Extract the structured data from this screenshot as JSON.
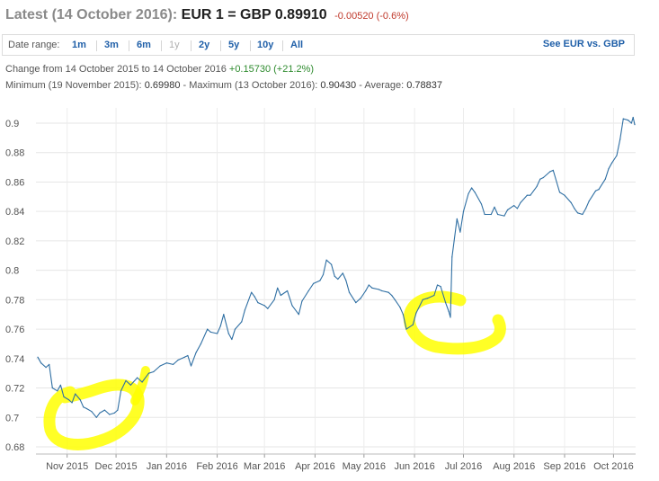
{
  "header": {
    "title_muted": "Latest (14 October 2016):",
    "title_main": "EUR 1 = GBP 0.89910",
    "change": "-0.00520 (-0.6%)"
  },
  "range_bar": {
    "label": "Date range:",
    "buttons": [
      "1m",
      "3m",
      "6m",
      "1y",
      "2y",
      "5y",
      "10y",
      "All"
    ],
    "disabled": "1y",
    "see_link": "See EUR vs. GBP"
  },
  "stats": {
    "change_text": "Change from 14 October 2015 to 14 October 2016",
    "change_value": "+0.15730 (+21.2%)",
    "min_label": "Minimum (19 November 2015):",
    "min_value": "0.69980",
    "max_label": "Maximum (13 October 2016):",
    "max_value": "0.90430",
    "avg_label": "Average:",
    "avg_value": "0.78837"
  },
  "colors": {
    "line": "#2f6fa3",
    "highlight": "#ffff00",
    "link": "#1f5fa8"
  },
  "chart_data": {
    "type": "line",
    "title": "",
    "xlabel": "",
    "ylabel": "",
    "ylim": [
      0.68,
      0.9
    ],
    "yticks": [
      0.68,
      0.7,
      0.72,
      0.74,
      0.76,
      0.78,
      0.8,
      0.82,
      0.84,
      0.86,
      0.88,
      0.9
    ],
    "xlim": [
      "2015-10-14",
      "2016-10-14"
    ],
    "xticks": [
      {
        "date": "2015-11-01",
        "label": "Nov 2015"
      },
      {
        "date": "2015-12-01",
        "label": "Dec 2015"
      },
      {
        "date": "2016-01-01",
        "label": "Jan 2016"
      },
      {
        "date": "2016-02-01",
        "label": "Feb 2016"
      },
      {
        "date": "2016-03-01",
        "label": "Mar 2016"
      },
      {
        "date": "2016-04-01",
        "label": "Apr 2016"
      },
      {
        "date": "2016-05-01",
        "label": "May 2016"
      },
      {
        "date": "2016-06-01",
        "label": "Jun 2016"
      },
      {
        "date": "2016-07-01",
        "label": "Jul 2016"
      },
      {
        "date": "2016-08-01",
        "label": "Aug 2016"
      },
      {
        "date": "2016-09-01",
        "label": "Sep 2016"
      },
      {
        "date": "2016-10-01",
        "label": "Oct 2016"
      }
    ],
    "grid": true,
    "series": [
      {
        "points": [
          [
            "2015-10-14",
            0.741
          ],
          [
            "2015-10-16",
            0.737
          ],
          [
            "2015-10-19",
            0.734
          ],
          [
            "2015-10-21",
            0.736
          ],
          [
            "2015-10-23",
            0.72
          ],
          [
            "2015-10-26",
            0.718
          ],
          [
            "2015-10-28",
            0.722
          ],
          [
            "2015-10-30",
            0.714
          ],
          [
            "2015-11-02",
            0.712
          ],
          [
            "2015-11-04",
            0.71
          ],
          [
            "2015-11-06",
            0.716
          ],
          [
            "2015-11-09",
            0.712
          ],
          [
            "2015-11-11",
            0.707
          ],
          [
            "2015-11-13",
            0.706
          ],
          [
            "2015-11-16",
            0.704
          ],
          [
            "2015-11-19",
            0.7
          ],
          [
            "2015-11-21",
            0.703
          ],
          [
            "2015-11-24",
            0.705
          ],
          [
            "2015-11-27",
            0.702
          ],
          [
            "2015-11-30",
            0.703
          ],
          [
            "2015-12-02",
            0.705
          ],
          [
            "2015-12-04",
            0.718
          ],
          [
            "2015-12-07",
            0.725
          ],
          [
            "2015-12-10",
            0.722
          ],
          [
            "2015-12-14",
            0.727
          ],
          [
            "2015-12-17",
            0.724
          ],
          [
            "2015-12-21",
            0.73
          ],
          [
            "2015-12-24",
            0.731
          ],
          [
            "2015-12-28",
            0.735
          ],
          [
            "2016-01-01",
            0.737
          ],
          [
            "2016-01-05",
            0.736
          ],
          [
            "2016-01-08",
            0.739
          ],
          [
            "2016-01-12",
            0.741
          ],
          [
            "2016-01-14",
            0.742
          ],
          [
            "2016-01-16",
            0.735
          ],
          [
            "2016-01-19",
            0.744
          ],
          [
            "2016-01-22",
            0.75
          ],
          [
            "2016-01-26",
            0.76
          ],
          [
            "2016-01-28",
            0.758
          ],
          [
            "2016-02-01",
            0.757
          ],
          [
            "2016-02-03",
            0.762
          ],
          [
            "2016-02-05",
            0.77
          ],
          [
            "2016-02-08",
            0.757
          ],
          [
            "2016-02-10",
            0.753
          ],
          [
            "2016-02-12",
            0.76
          ],
          [
            "2016-02-16",
            0.765
          ],
          [
            "2016-02-18",
            0.773
          ],
          [
            "2016-02-22",
            0.785
          ],
          [
            "2016-02-24",
            0.782
          ],
          [
            "2016-02-26",
            0.778
          ],
          [
            "2016-03-01",
            0.776
          ],
          [
            "2016-03-03",
            0.774
          ],
          [
            "2016-03-07",
            0.78
          ],
          [
            "2016-03-09",
            0.788
          ],
          [
            "2016-03-11",
            0.783
          ],
          [
            "2016-03-15",
            0.786
          ],
          [
            "2016-03-18",
            0.776
          ],
          [
            "2016-03-22",
            0.77
          ],
          [
            "2016-03-24",
            0.779
          ],
          [
            "2016-03-28",
            0.786
          ],
          [
            "2016-03-31",
            0.791
          ],
          [
            "2016-04-04",
            0.793
          ],
          [
            "2016-04-06",
            0.797
          ],
          [
            "2016-04-08",
            0.807
          ],
          [
            "2016-04-11",
            0.804
          ],
          [
            "2016-04-13",
            0.796
          ],
          [
            "2016-04-15",
            0.794
          ],
          [
            "2016-04-18",
            0.798
          ],
          [
            "2016-04-20",
            0.793
          ],
          [
            "2016-04-22",
            0.785
          ],
          [
            "2016-04-26",
            0.778
          ],
          [
            "2016-04-29",
            0.781
          ],
          [
            "2016-05-02",
            0.786
          ],
          [
            "2016-05-04",
            0.79
          ],
          [
            "2016-05-06",
            0.788
          ],
          [
            "2016-05-10",
            0.787
          ],
          [
            "2016-05-12",
            0.786
          ],
          [
            "2016-05-16",
            0.785
          ],
          [
            "2016-05-18",
            0.783
          ],
          [
            "2016-05-20",
            0.78
          ],
          [
            "2016-05-23",
            0.775
          ],
          [
            "2016-05-25",
            0.77
          ],
          [
            "2016-05-27",
            0.76
          ],
          [
            "2016-05-31",
            0.763
          ],
          [
            "2016-06-02",
            0.771
          ],
          [
            "2016-06-06",
            0.78
          ],
          [
            "2016-06-09",
            0.781
          ],
          [
            "2016-06-13",
            0.783
          ],
          [
            "2016-06-15",
            0.79
          ],
          [
            "2016-06-17",
            0.789
          ],
          [
            "2016-06-20",
            0.778
          ],
          [
            "2016-06-22",
            0.772
          ],
          [
            "2016-06-23",
            0.768
          ],
          [
            "2016-06-24",
            0.809
          ],
          [
            "2016-06-27",
            0.835
          ],
          [
            "2016-06-29",
            0.826
          ],
          [
            "2016-07-01",
            0.84
          ],
          [
            "2016-07-04",
            0.852
          ],
          [
            "2016-07-06",
            0.856
          ],
          [
            "2016-07-08",
            0.853
          ],
          [
            "2016-07-12",
            0.845
          ],
          [
            "2016-07-14",
            0.838
          ],
          [
            "2016-07-18",
            0.838
          ],
          [
            "2016-07-20",
            0.843
          ],
          [
            "2016-07-22",
            0.838
          ],
          [
            "2016-07-26",
            0.837
          ],
          [
            "2016-07-28",
            0.841
          ],
          [
            "2016-08-01",
            0.844
          ],
          [
            "2016-08-03",
            0.842
          ],
          [
            "2016-08-05",
            0.846
          ],
          [
            "2016-08-09",
            0.851
          ],
          [
            "2016-08-11",
            0.851
          ],
          [
            "2016-08-15",
            0.857
          ],
          [
            "2016-08-17",
            0.862
          ],
          [
            "2016-08-19",
            0.863
          ],
          [
            "2016-08-23",
            0.867
          ],
          [
            "2016-08-25",
            0.868
          ],
          [
            "2016-08-29",
            0.853
          ],
          [
            "2016-09-01",
            0.851
          ],
          [
            "2016-09-05",
            0.846
          ],
          [
            "2016-09-07",
            0.842
          ],
          [
            "2016-09-09",
            0.839
          ],
          [
            "2016-09-12",
            0.838
          ],
          [
            "2016-09-14",
            0.842
          ],
          [
            "2016-09-16",
            0.847
          ],
          [
            "2016-09-20",
            0.854
          ],
          [
            "2016-09-22",
            0.855
          ],
          [
            "2016-09-26",
            0.862
          ],
          [
            "2016-09-28",
            0.869
          ],
          [
            "2016-09-30",
            0.873
          ],
          [
            "2016-10-03",
            0.878
          ],
          [
            "2016-10-05",
            0.889
          ],
          [
            "2016-10-07",
            0.903
          ],
          [
            "2016-10-10",
            0.902
          ],
          [
            "2016-10-12",
            0.9
          ],
          [
            "2016-10-13",
            0.904
          ],
          [
            "2016-10-14",
            0.899
          ]
        ]
      }
    ]
  }
}
